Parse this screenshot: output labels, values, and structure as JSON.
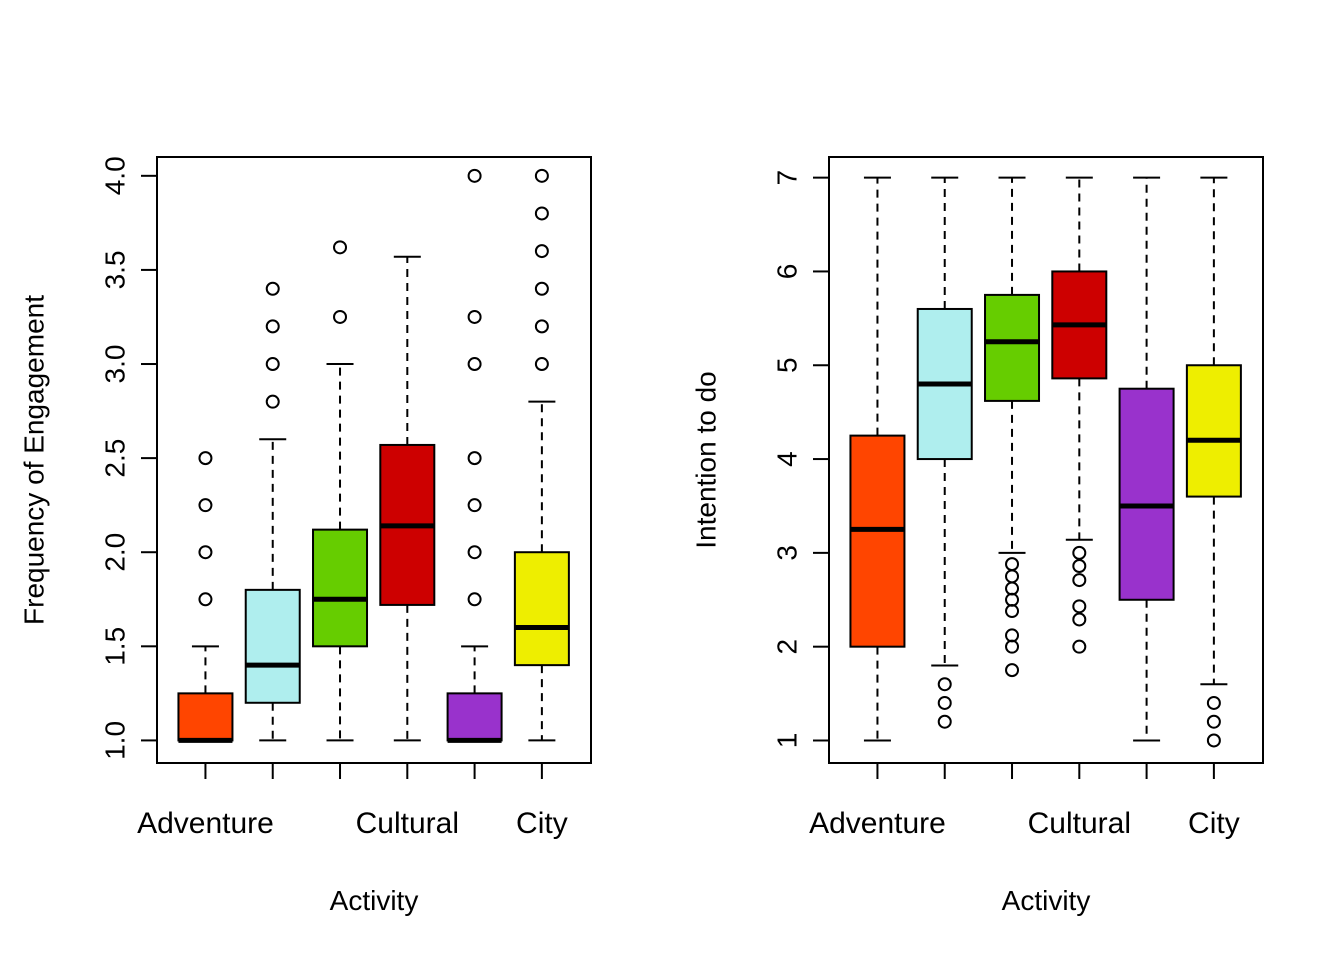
{
  "chart_data": [
    {
      "type": "boxplot",
      "xlabel": "Activity",
      "ylabel": "Frequency of Engagement",
      "ylim": [
        0.88,
        4.1
      ],
      "yticks": [
        "1.0",
        "1.5",
        "2.0",
        "2.5",
        "3.0",
        "3.5",
        "4.0"
      ],
      "category_labels": [
        "Adventure",
        "",
        "",
        "Cultural",
        "",
        "City"
      ],
      "grid": false,
      "boxes": [
        {
          "color": "#FF4500",
          "min": 1.0,
          "q1": 1.0,
          "median": 1.0,
          "q3": 1.25,
          "max": 1.5,
          "outliers": [
            1.75,
            2.0,
            2.25,
            2.5
          ]
        },
        {
          "color": "#AFEEEE",
          "min": 1.0,
          "q1": 1.2,
          "median": 1.4,
          "q3": 1.8,
          "max": 2.6,
          "outliers": [
            2.8,
            3.0,
            3.2,
            3.4
          ]
        },
        {
          "color": "#66CD00",
          "min": 1.0,
          "q1": 1.5,
          "median": 1.75,
          "q3": 2.12,
          "max": 3.0,
          "outliers": [
            3.25,
            3.62
          ]
        },
        {
          "color": "#CD0000",
          "min": 1.0,
          "q1": 1.72,
          "median": 2.14,
          "q3": 2.57,
          "max": 3.57,
          "outliers": []
        },
        {
          "color": "#9932CC",
          "min": 1.0,
          "q1": 1.0,
          "median": 1.0,
          "q3": 1.25,
          "max": 1.5,
          "outliers": [
            1.75,
            2.0,
            2.25,
            2.5,
            3.0,
            3.25,
            4.0
          ]
        },
        {
          "color": "#EEEE00",
          "min": 1.0,
          "q1": 1.4,
          "median": 1.6,
          "q3": 2.0,
          "max": 2.8,
          "outliers": [
            3.0,
            3.2,
            3.4,
            3.6,
            3.8,
            4.0
          ]
        }
      ]
    },
    {
      "type": "boxplot",
      "xlabel": "Activity",
      "ylabel": "Intention to do",
      "ylim": [
        0.76,
        7.22
      ],
      "yticks": [
        "1",
        "2",
        "3",
        "4",
        "5",
        "6",
        "7"
      ],
      "category_labels": [
        "Adventure",
        "",
        "",
        "Cultural",
        "",
        "City"
      ],
      "grid": false,
      "boxes": [
        {
          "color": "#FF4500",
          "min": 1.0,
          "q1": 2.0,
          "median": 3.25,
          "q3": 4.25,
          "max": 7.0,
          "outliers": []
        },
        {
          "color": "#AFEEEE",
          "min": 1.8,
          "q1": 4.0,
          "median": 4.8,
          "q3": 5.6,
          "max": 7.0,
          "outliers": [
            1.2,
            1.4,
            1.6
          ]
        },
        {
          "color": "#66CD00",
          "min": 3.0,
          "q1": 4.62,
          "median": 5.25,
          "q3": 5.75,
          "max": 7.0,
          "outliers": [
            1.75,
            2.0,
            2.12,
            2.38,
            2.5,
            2.62,
            2.75,
            2.88
          ]
        },
        {
          "color": "#CD0000",
          "min": 3.14,
          "q1": 4.86,
          "median": 5.43,
          "q3": 6.0,
          "max": 7.0,
          "outliers": [
            2.0,
            2.29,
            2.43,
            2.71,
            2.86,
            3.0
          ]
        },
        {
          "color": "#9932CC",
          "min": 1.0,
          "q1": 2.5,
          "median": 3.5,
          "q3": 4.75,
          "max": 7.0,
          "outliers": []
        },
        {
          "color": "#EEEE00",
          "min": 1.6,
          "q1": 3.6,
          "median": 4.2,
          "q3": 5.0,
          "max": 7.0,
          "outliers": [
            1.0,
            1.2,
            1.4
          ]
        }
      ]
    }
  ]
}
